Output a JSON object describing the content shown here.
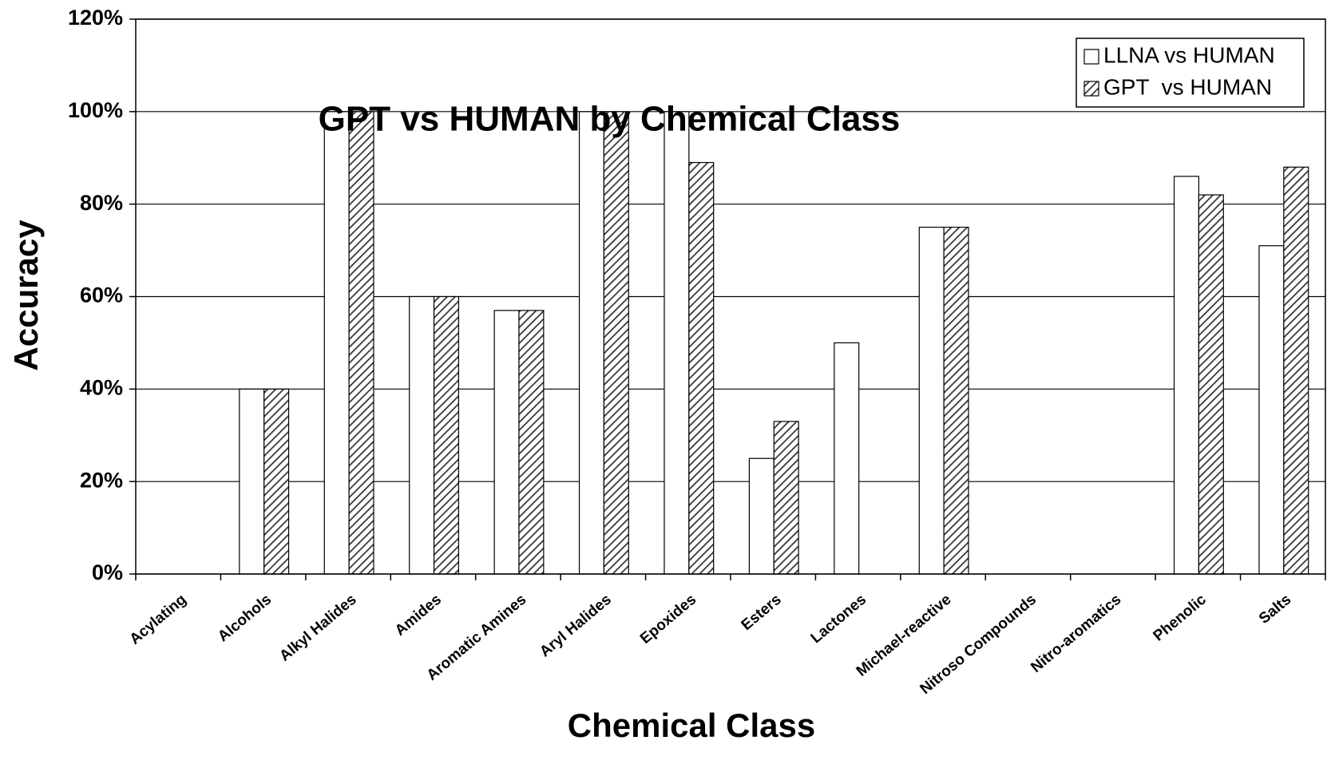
{
  "chart_data": {
    "type": "bar",
    "title": "GPT vs HUMAN by Chemical Class",
    "x_label": "Chemical Class",
    "y_label": "Accuracy",
    "categories": [
      "Acylating",
      "Alcohols",
      "Alkyl Halides",
      "Amides",
      "Aromatic Amines",
      "Aryl Halides",
      "Epoxides",
      "Esters",
      "Lactones",
      "Michael-reactive",
      "Nitroso Compounds",
      "Nitro-aromatics",
      "Phenolic",
      "Salts"
    ],
    "series": [
      {
        "name": "LLNA vs HUMAN",
        "color": "#ffffff",
        "hatch": false,
        "values": [
          0,
          40,
          100,
          60,
          57,
          100,
          100,
          25,
          50,
          75,
          0,
          0,
          86,
          71
        ]
      },
      {
        "name": "GPT  vs HUMAN",
        "color": "#ffffff",
        "hatch": true,
        "values": [
          0,
          40,
          100,
          60,
          57,
          100,
          89,
          33,
          0,
          75,
          0,
          0,
          82,
          88
        ]
      }
    ],
    "ylim": [
      0,
      120
    ],
    "yticks": [
      {
        "value": 0,
        "label": "0%"
      },
      {
        "value": 20,
        "label": "20%"
      },
      {
        "value": 40,
        "label": "40%"
      },
      {
        "value": 60,
        "label": "60%"
      },
      {
        "value": 80,
        "label": "80%"
      },
      {
        "value": 100,
        "label": "100%"
      },
      {
        "value": 120,
        "label": "120%"
      }
    ],
    "grid": true,
    "legend": "upper right"
  }
}
